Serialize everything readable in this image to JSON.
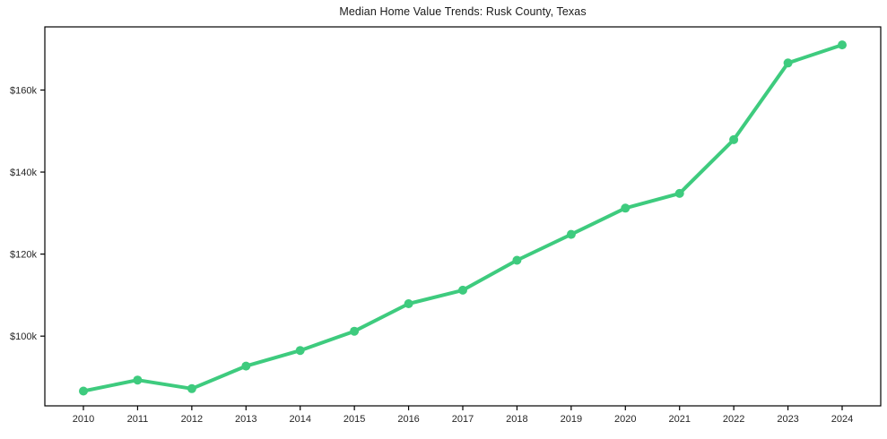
{
  "chart_data": {
    "type": "line",
    "title": "Median Home Value Trends: Rusk County, Texas",
    "x": [
      2010,
      2011,
      2012,
      2013,
      2014,
      2015,
      2016,
      2017,
      2018,
      2019,
      2020,
      2021,
      2022,
      2023,
      2024
    ],
    "xtick_labels": [
      "2010",
      "2011",
      "2012",
      "2013",
      "2014",
      "2015",
      "2016",
      "2017",
      "2018",
      "2019",
      "2020",
      "2021",
      "2022",
      "2023",
      "2024"
    ],
    "values": [
      86600,
      89300,
      87200,
      92700,
      96500,
      101200,
      107900,
      111200,
      118500,
      124800,
      131200,
      134800,
      147900,
      166600,
      171000
    ],
    "xlabel": "",
    "ylabel": "",
    "ylim": [
      83000,
      175400
    ],
    "yticks": {
      "values": [
        100000,
        120000,
        140000,
        160000
      ],
      "labels": [
        "$100k",
        "$120k",
        "$140k",
        "$160k"
      ]
    },
    "grid": false,
    "legend_position": "none",
    "line_color": "#3ecb7e",
    "marker": "circle",
    "marker_radius": 5,
    "line_width": 4,
    "axis_color": "#000000",
    "tick_color": "#000000",
    "text_color": "#262626",
    "background": "#ffffff"
  }
}
